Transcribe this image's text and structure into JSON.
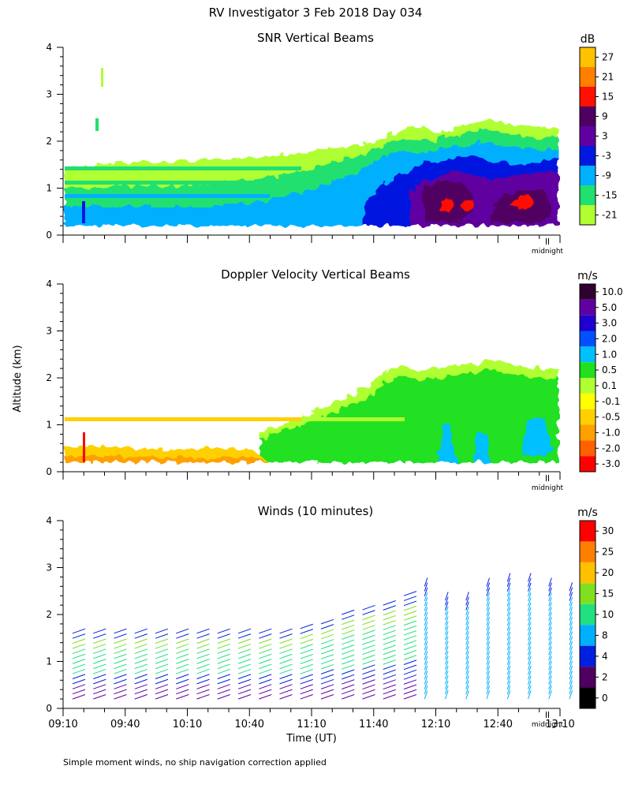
{
  "page": {
    "title": "RV Investigator    3 Feb 2018 Day 034",
    "ylabel": "Altitude (km)",
    "xlabel": "Time (UT)",
    "footnote": "Simple moment winds, no ship navigation correction applied",
    "midnight_label": "midnight"
  },
  "chart_data": [
    {
      "type": "heatmap",
      "title": "SNR Vertical Beams",
      "ylabel": "Altitude (km)",
      "ylim": [
        0,
        4
      ],
      "yticks": [
        "0",
        "1",
        "2",
        "3",
        "4"
      ],
      "xlim": [
        "09:10",
        "13:10"
      ],
      "colorbar_unit": "dB",
      "colorbar_labels": [
        "27",
        "21",
        "15",
        "9",
        "3",
        "-3",
        "-9",
        "-15",
        "-21"
      ],
      "colorbar_colors": [
        "#ffc200",
        "#ff8000",
        "#ff1000",
        "#500060",
        "#6000a0",
        "#0018e0",
        "#00b0ff",
        "#20e070",
        "#b0ff30"
      ],
      "midnight_marker": "midnight"
    },
    {
      "type": "heatmap",
      "title": "Doppler Velocity Vertical Beams",
      "ylim": [
        0,
        4
      ],
      "yticks": [
        "0",
        "1",
        "2",
        "3",
        "4"
      ],
      "xlim": [
        "09:10",
        "13:10"
      ],
      "colorbar_unit": "m/s",
      "colorbar_labels": [
        "10.0",
        "5.0",
        "3.0",
        "2.0",
        "1.0",
        "0.5",
        "0.1",
        "-0.1",
        "-0.5",
        "-1.0",
        "-2.0",
        "-3.0"
      ],
      "colorbar_colors": [
        "#300030",
        "#6000a0",
        "#2000d0",
        "#0050ff",
        "#00c0ff",
        "#20e020",
        "#b0ff30",
        "#ffff00",
        "#ffd000",
        "#ffa000",
        "#ff6000",
        "#ff0000"
      ],
      "midnight_marker": "midnight"
    },
    {
      "type": "scatter",
      "title": "Winds (10 minutes)",
      "ylim": [
        0,
        4
      ],
      "yticks": [
        "0",
        "1",
        "2",
        "3",
        "4"
      ],
      "x_ticklabels": [
        "09:10",
        "09:40",
        "10:10",
        "10:40",
        "11:10",
        "11:40",
        "12:10",
        "12:40",
        "13:10"
      ],
      "colorbar_unit": "m/s",
      "colorbar_labels": [
        "30",
        "25",
        "20",
        "15",
        "10",
        "8",
        "4",
        "2",
        "0"
      ],
      "colorbar_colors": [
        "#ff0000",
        "#ff8000",
        "#ffc000",
        "#80e020",
        "#20e080",
        "#00b0ff",
        "#0020e0",
        "#500060",
        "#000000"
      ],
      "midnight_marker": "midnight",
      "profile_tops_km": [
        1.6,
        1.6,
        1.6,
        1.6,
        1.6,
        1.6,
        1.6,
        1.6,
        1.6,
        1.6,
        1.6,
        1.7,
        1.8,
        2.0,
        2.1,
        2.2,
        2.4,
        2.6,
        2.3,
        2.3,
        2.6,
        2.7,
        2.7,
        2.6,
        2.5
      ]
    }
  ]
}
